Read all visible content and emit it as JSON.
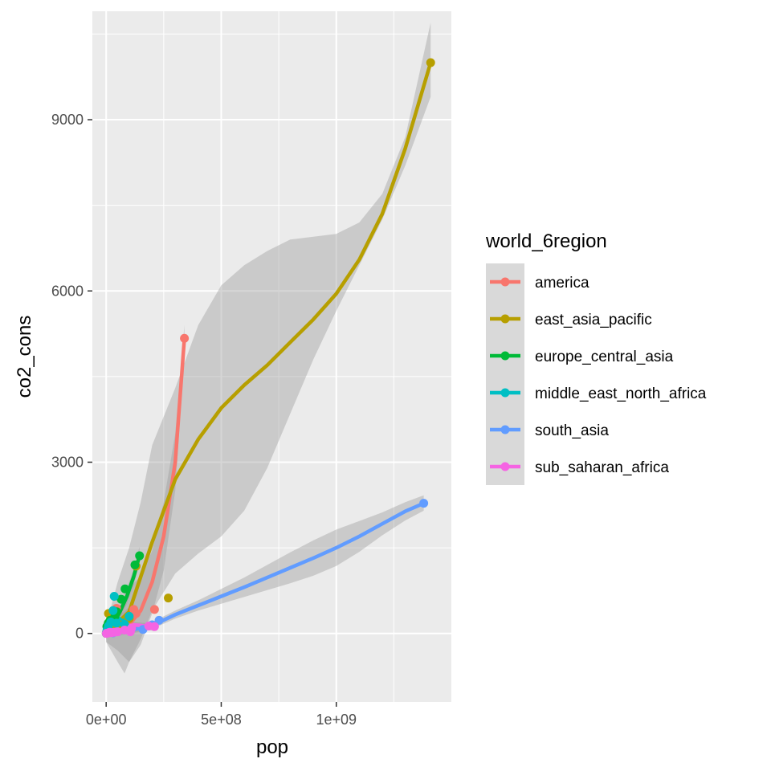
{
  "chart_data": {
    "type": "scatter",
    "xlabel": "pop",
    "ylabel": "co2_cons",
    "xlim": [
      -60000000,
      1500000000
    ],
    "ylim": [
      -1200,
      10900
    ],
    "x_ticks": [
      0,
      500000000,
      1000000000
    ],
    "x_tick_labels": [
      "0e+00",
      "5e+08",
      "1e+09"
    ],
    "y_ticks": [
      0,
      3000,
      6000,
      9000
    ],
    "y_tick_labels": [
      "0",
      "3000",
      "6000",
      "9000"
    ],
    "grid": true,
    "legend": {
      "title": "world_6region",
      "placement": "right"
    },
    "series": [
      {
        "name": "america",
        "color": "#F8766D",
        "points": [
          [
            300000,
            1
          ],
          [
            1000000,
            5
          ],
          [
            3000000,
            10
          ],
          [
            5000000,
            30
          ],
          [
            9000000,
            40
          ],
          [
            10000000,
            20
          ],
          [
            16000000,
            60
          ],
          [
            20000000,
            120
          ],
          [
            30000000,
            170
          ],
          [
            45000000,
            440
          ],
          [
            50000000,
            150
          ],
          [
            120000000,
            420
          ],
          [
            130000000,
            350
          ],
          [
            210000000,
            420
          ],
          [
            340000000,
            5170
          ]
        ],
        "trend": [
          [
            0,
            0
          ],
          [
            50000000,
            40
          ],
          [
            100000000,
            150
          ],
          [
            150000000,
            400
          ],
          [
            200000000,
            900
          ],
          [
            250000000,
            1700
          ],
          [
            300000000,
            3000
          ],
          [
            340000000,
            5170
          ]
        ],
        "band_low": [
          [
            0,
            -150
          ],
          [
            50000000,
            -300
          ],
          [
            100000000,
            -500
          ],
          [
            150000000,
            -200
          ],
          [
            200000000,
            350
          ],
          [
            250000000,
            1100
          ],
          [
            300000000,
            2500
          ],
          [
            340000000,
            4950
          ]
        ],
        "band_high": [
          [
            0,
            150
          ],
          [
            50000000,
            380
          ],
          [
            100000000,
            800
          ],
          [
            150000000,
            1000
          ],
          [
            200000000,
            1450
          ],
          [
            250000000,
            2300
          ],
          [
            300000000,
            3500
          ],
          [
            340000000,
            5400
          ]
        ]
      },
      {
        "name": "east_asia_pacific",
        "color": "#B79F00",
        "points": [
          [
            200000,
            1
          ],
          [
            1000000,
            10
          ],
          [
            5000000,
            80
          ],
          [
            10000000,
            350
          ],
          [
            20000000,
            100
          ],
          [
            30000000,
            200
          ],
          [
            60000000,
            150
          ],
          [
            70000000,
            120
          ],
          [
            100000000,
            260
          ],
          [
            130000000,
            1180
          ],
          [
            270000000,
            620
          ],
          [
            1410000000,
            10000
          ]
        ],
        "trend": [
          [
            0,
            0
          ],
          [
            100000000,
            380
          ],
          [
            200000000,
            1600
          ],
          [
            300000000,
            2700
          ],
          [
            400000000,
            3400
          ],
          [
            500000000,
            3950
          ],
          [
            600000000,
            4350
          ],
          [
            700000000,
            4700
          ],
          [
            800000000,
            5100
          ],
          [
            900000000,
            5500
          ],
          [
            1000000000,
            5950
          ],
          [
            1100000000,
            6550
          ],
          [
            1200000000,
            7350
          ],
          [
            1300000000,
            8500
          ],
          [
            1410000000,
            10000
          ]
        ],
        "band_low": [
          [
            0,
            -150
          ],
          [
            50000000,
            -500
          ],
          [
            80000000,
            -700
          ],
          [
            100000000,
            -500
          ],
          [
            150000000,
            -100
          ],
          [
            200000000,
            400
          ],
          [
            300000000,
            1050
          ],
          [
            400000000,
            1400
          ],
          [
            500000000,
            1700
          ],
          [
            600000000,
            2150
          ],
          [
            700000000,
            2900
          ],
          [
            800000000,
            3850
          ],
          [
            900000000,
            4800
          ],
          [
            1000000000,
            5650
          ],
          [
            1100000000,
            6450
          ],
          [
            1200000000,
            7250
          ],
          [
            1300000000,
            8200
          ],
          [
            1410000000,
            9400
          ]
        ],
        "band_high": [
          [
            0,
            150
          ],
          [
            50000000,
            900
          ],
          [
            100000000,
            1500
          ],
          [
            150000000,
            2300
          ],
          [
            200000000,
            3300
          ],
          [
            300000000,
            4300
          ],
          [
            400000000,
            5400
          ],
          [
            500000000,
            6100
          ],
          [
            600000000,
            6450
          ],
          [
            700000000,
            6700
          ],
          [
            800000000,
            6900
          ],
          [
            900000000,
            6950
          ],
          [
            1000000000,
            7000
          ],
          [
            1100000000,
            7200
          ],
          [
            1200000000,
            7700
          ],
          [
            1300000000,
            8700
          ],
          [
            1410000000,
            10700
          ]
        ]
      },
      {
        "name": "europe_central_asia",
        "color": "#00BA38",
        "points": [
          [
            1000000,
            15
          ],
          [
            3000000,
            120
          ],
          [
            5000000,
            90
          ],
          [
            9000000,
            180
          ],
          [
            10000000,
            60
          ],
          [
            17000000,
            230
          ],
          [
            38000000,
            300
          ],
          [
            46000000,
            380
          ],
          [
            65000000,
            600
          ],
          [
            82000000,
            780
          ],
          [
            125000000,
            1200
          ],
          [
            145000000,
            1360
          ]
        ],
        "trend": [
          [
            0,
            0
          ],
          [
            30000000,
            150
          ],
          [
            60000000,
            380
          ],
          [
            90000000,
            650
          ],
          [
            120000000,
            1000
          ],
          [
            145000000,
            1360
          ]
        ],
        "band_low": [
          [
            0,
            -80
          ],
          [
            30000000,
            60
          ],
          [
            60000000,
            260
          ],
          [
            90000000,
            520
          ],
          [
            120000000,
            860
          ],
          [
            145000000,
            1200
          ]
        ],
        "band_high": [
          [
            0,
            80
          ],
          [
            30000000,
            240
          ],
          [
            60000000,
            500
          ],
          [
            90000000,
            780
          ],
          [
            120000000,
            1140
          ],
          [
            145000000,
            1520
          ]
        ]
      },
      {
        "name": "middle_east_north_africa",
        "color": "#00BFC4",
        "points": [
          [
            1000000,
            15
          ],
          [
            4000000,
            60
          ],
          [
            10000000,
            130
          ],
          [
            20000000,
            200
          ],
          [
            30000000,
            400
          ],
          [
            35000000,
            650
          ],
          [
            45000000,
            180
          ],
          [
            80000000,
            160
          ],
          [
            100000000,
            300
          ]
        ],
        "trend": [
          [
            0,
            0
          ],
          [
            20000000,
            230
          ],
          [
            35000000,
            330
          ],
          [
            50000000,
            280
          ],
          [
            70000000,
            220
          ],
          [
            100000000,
            260
          ]
        ],
        "band_low": [
          [
            0,
            -80
          ],
          [
            20000000,
            120
          ],
          [
            35000000,
            200
          ],
          [
            50000000,
            150
          ],
          [
            70000000,
            80
          ],
          [
            100000000,
            60
          ]
        ],
        "band_high": [
          [
            0,
            80
          ],
          [
            20000000,
            340
          ],
          [
            35000000,
            460
          ],
          [
            50000000,
            420
          ],
          [
            70000000,
            360
          ],
          [
            100000000,
            460
          ]
        ]
      },
      {
        "name": "south_asia",
        "color": "#619CFF",
        "points": [
          [
            500000,
            1
          ],
          [
            21000000,
            20
          ],
          [
            30000000,
            10
          ],
          [
            160000000,
            70
          ],
          [
            200000000,
            150
          ],
          [
            230000000,
            230
          ],
          [
            1380000000,
            2280
          ]
        ],
        "trend": [
          [
            0,
            0
          ],
          [
            100000000,
            50
          ],
          [
            200000000,
            140
          ],
          [
            300000000,
            330
          ],
          [
            400000000,
            490
          ],
          [
            500000000,
            650
          ],
          [
            600000000,
            810
          ],
          [
            700000000,
            980
          ],
          [
            800000000,
            1150
          ],
          [
            900000000,
            1320
          ],
          [
            1000000000,
            1500
          ],
          [
            1100000000,
            1700
          ],
          [
            1200000000,
            1920
          ],
          [
            1300000000,
            2140
          ],
          [
            1380000000,
            2280
          ]
        ],
        "band_low": [
          [
            0,
            -60
          ],
          [
            100000000,
            -10
          ],
          [
            200000000,
            80
          ],
          [
            300000000,
            260
          ],
          [
            400000000,
            400
          ],
          [
            500000000,
            520
          ],
          [
            600000000,
            640
          ],
          [
            700000000,
            760
          ],
          [
            800000000,
            880
          ],
          [
            900000000,
            1010
          ],
          [
            1000000000,
            1180
          ],
          [
            1100000000,
            1430
          ],
          [
            1200000000,
            1720
          ],
          [
            1300000000,
            1980
          ],
          [
            1380000000,
            2150
          ]
        ],
        "band_high": [
          [
            0,
            60
          ],
          [
            100000000,
            110
          ],
          [
            200000000,
            200
          ],
          [
            300000000,
            400
          ],
          [
            400000000,
            580
          ],
          [
            500000000,
            780
          ],
          [
            600000000,
            980
          ],
          [
            700000000,
            1200
          ],
          [
            800000000,
            1420
          ],
          [
            900000000,
            1630
          ],
          [
            1000000000,
            1820
          ],
          [
            1100000000,
            1970
          ],
          [
            1200000000,
            2120
          ],
          [
            1300000000,
            2300
          ],
          [
            1380000000,
            2420
          ]
        ]
      },
      {
        "name": "sub_saharan_africa",
        "color": "#F564E3",
        "points": [
          [
            1000000,
            1
          ],
          [
            5000000,
            5
          ],
          [
            10000000,
            10
          ],
          [
            15000000,
            20
          ],
          [
            25000000,
            15
          ],
          [
            35000000,
            20
          ],
          [
            50000000,
            30
          ],
          [
            80000000,
            60
          ],
          [
            105000000,
            30
          ],
          [
            110000000,
            90
          ],
          [
            185000000,
            130
          ],
          [
            210000000,
            120
          ]
        ],
        "trend": [
          [
            0,
            0
          ],
          [
            30000000,
            30
          ],
          [
            60000000,
            80
          ],
          [
            90000000,
            120
          ],
          [
            120000000,
            150
          ],
          [
            150000000,
            140
          ],
          [
            180000000,
            120
          ],
          [
            210000000,
            120
          ]
        ],
        "band_low": [
          [
            0,
            -50
          ],
          [
            30000000,
            0
          ],
          [
            60000000,
            40
          ],
          [
            90000000,
            70
          ],
          [
            120000000,
            100
          ],
          [
            150000000,
            90
          ],
          [
            180000000,
            60
          ],
          [
            210000000,
            40
          ]
        ],
        "band_high": [
          [
            0,
            50
          ],
          [
            30000000,
            60
          ],
          [
            60000000,
            120
          ],
          [
            90000000,
            170
          ],
          [
            120000000,
            200
          ],
          [
            150000000,
            190
          ],
          [
            180000000,
            180
          ],
          [
            210000000,
            200
          ]
        ]
      }
    ]
  }
}
